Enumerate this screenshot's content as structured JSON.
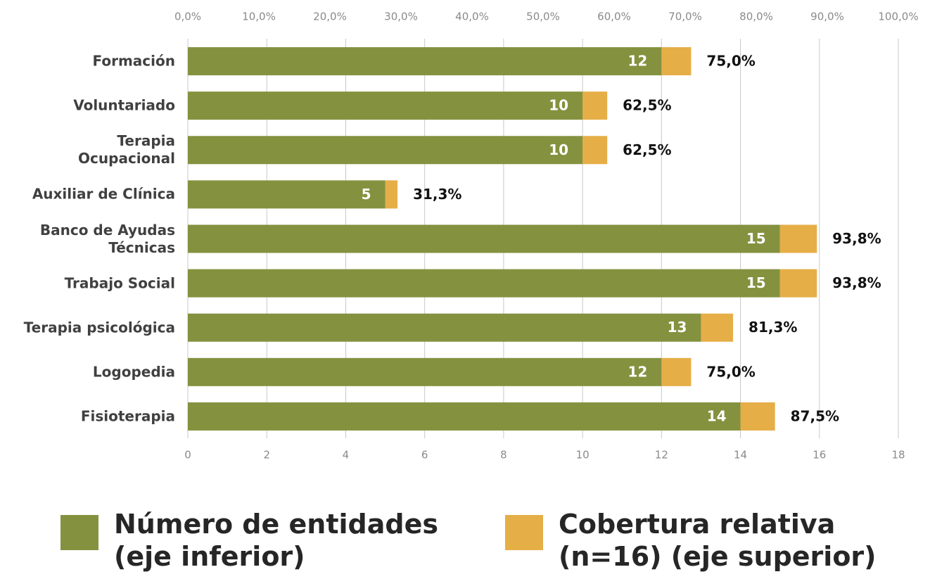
{
  "chart_data": {
    "type": "bar",
    "orientation": "horizontal",
    "categories": [
      "Formación",
      "Voluntariado",
      "Terapia\nOcupacional",
      "Auxiliar de Clínica",
      "Banco de Ayudas\nTécnicas",
      "Trabajo Social",
      "Terapia psicológica",
      "Logopedia",
      "Fisioterapia"
    ],
    "series": [
      {
        "name": "Número de entidades\n(eje inferior)",
        "color": "#84923f",
        "values": [
          12,
          10,
          10,
          5,
          15,
          15,
          13,
          12,
          14
        ]
      },
      {
        "name": "Cobertura relativa\n(n=16) (eje superior)",
        "color": "#e6ae47",
        "stacked": true,
        "values": [
          0.75,
          0.625,
          0.625,
          0.3125,
          0.9375,
          0.9375,
          0.8125,
          0.75,
          0.875
        ],
        "value_labels": [
          "75,0%",
          "62,5%",
          "62,5%",
          "31,3%",
          "93,8%",
          "93,8%",
          "81,3%",
          "75,0%",
          "87,5%"
        ]
      }
    ],
    "xlim": [
      0,
      18
    ],
    "xticks": [
      0,
      2,
      4,
      6,
      8,
      10,
      12,
      14,
      16,
      18
    ],
    "x2lim": [
      0,
      100
    ],
    "x2ticks": [
      {
        "value": 0,
        "label": "0,0%"
      },
      {
        "value": 10,
        "label": "10,0%"
      },
      {
        "value": 20,
        "label": "20,0%"
      },
      {
        "value": 30,
        "label": "30,0%"
      },
      {
        "value": 40,
        "label": "40,0%"
      },
      {
        "value": 50,
        "label": "50,0%"
      },
      {
        "value": 60,
        "label": "60,0%"
      },
      {
        "value": 70,
        "label": "70,0%"
      },
      {
        "value": 80,
        "label": "80,0%"
      },
      {
        "value": 90,
        "label": "90,0%"
      },
      {
        "value": 100,
        "label": "100,0%"
      }
    ],
    "grid": true,
    "legend": "bottom"
  }
}
